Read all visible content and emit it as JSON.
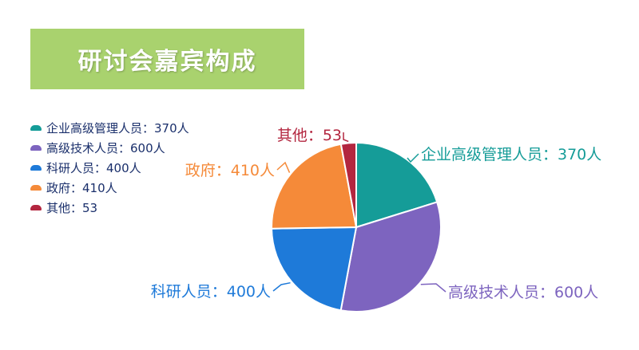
{
  "title": "研讨会嘉宾构成",
  "colors": {
    "banner": "#a9d26e",
    "legend_text": "#1a2f6b"
  },
  "chart_data": {
    "type": "pie",
    "title": "研讨会嘉宾构成",
    "legend_position": "left",
    "unit": "人",
    "slices": [
      {
        "name": "企业高级管理人员",
        "value": 370,
        "color": "#159c98",
        "label": "企业高级管理人员：370人",
        "legend": "企业高级管理人员：370人"
      },
      {
        "name": "高级技术人员",
        "value": 600,
        "color": "#7d64bf",
        "label": "高级技术人员：600人",
        "legend": "高级技术人员：600人"
      },
      {
        "name": "科研人员",
        "value": 400,
        "color": "#1e7ad9",
        "label": "科研人员：400人",
        "legend": "科研人员：400人"
      },
      {
        "name": "政府",
        "value": 410,
        "color": "#f58a39",
        "label": "政府：410人",
        "legend": "政府：410人"
      },
      {
        "name": "其他",
        "value": 53,
        "color": "#b3263f",
        "label": "其他：53",
        "legend": "其他：53"
      }
    ]
  }
}
